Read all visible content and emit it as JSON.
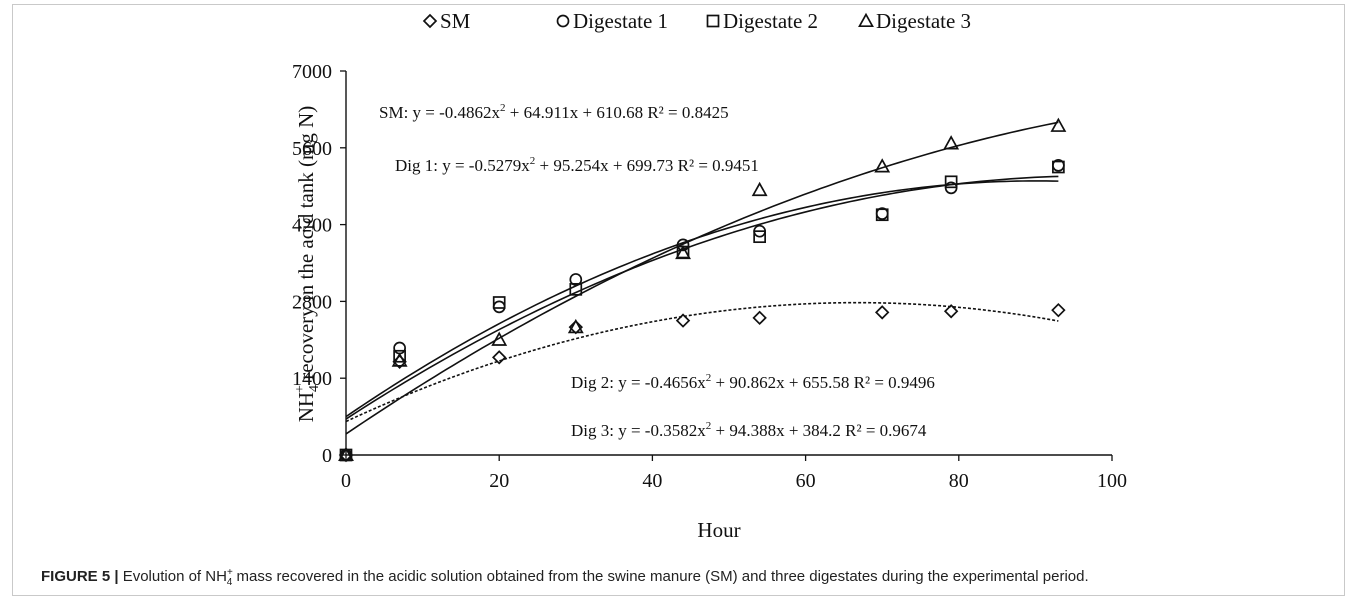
{
  "chart_data": {
    "type": "scatter",
    "xlabel": "Hour",
    "ylabel_prefix": "NH",
    "ylabel_sub": "4",
    "ylabel_sup": "+",
    "ylabel_suffix": " recovery in the acid tank (mg N)",
    "xlim": [
      0,
      100
    ],
    "ylim": [
      0,
      7000
    ],
    "xticks": [
      0,
      20,
      40,
      60,
      80,
      100
    ],
    "yticks": [
      0,
      1400,
      2800,
      4200,
      5600,
      7000
    ],
    "grid": false,
    "legend_position": "top",
    "series": [
      {
        "name": "SM",
        "marker": "diamond",
        "x": [
          0,
          7,
          20,
          30,
          44,
          54,
          70,
          79,
          93
        ],
        "y": [
          0,
          1700,
          1780,
          2330,
          2450,
          2500,
          2600,
          2620,
          2640
        ],
        "fit": {
          "a": -0.4862,
          "b": 64.911,
          "c": 610.68,
          "style": "dashed"
        }
      },
      {
        "name": "Digestate 1",
        "marker": "circle",
        "x": [
          0,
          7,
          20,
          30,
          44,
          54,
          70,
          79,
          93
        ],
        "y": [
          0,
          1950,
          2700,
          3200,
          3830,
          4080,
          4400,
          4870,
          5280
        ],
        "fit": {
          "a": -0.5279,
          "b": 95.254,
          "c": 699.73,
          "style": "solid"
        }
      },
      {
        "name": "Digestate 2",
        "marker": "square",
        "x": [
          0,
          7,
          20,
          30,
          44,
          54,
          70,
          79,
          93
        ],
        "y": [
          0,
          1800,
          2780,
          3020,
          3700,
          3980,
          4380,
          4980,
          5250
        ],
        "fit": {
          "a": -0.4656,
          "b": 90.862,
          "c": 655.58,
          "style": "solid"
        }
      },
      {
        "name": "Digestate 3",
        "marker": "triangle",
        "x": [
          0,
          7,
          20,
          30,
          44,
          54,
          70,
          79,
          93
        ],
        "y": [
          0,
          1720,
          2100,
          2330,
          3680,
          4830,
          5260,
          5680,
          6000
        ],
        "fit": {
          "a": -0.3582,
          "b": 94.388,
          "c": 384.2,
          "style": "solid"
        }
      }
    ],
    "annotations": [
      {
        "prefix": "SM: y = -0.4862x",
        "sup": "2",
        "suffix": " + 64.911x + 610.68   R² = 0.8425"
      },
      {
        "prefix": "Dig 1: y = -0.5279x",
        "sup": "2",
        "suffix": " + 95.254x + 699.73  R² = 0.9451"
      },
      {
        "prefix": "Dig 2: y = -0.4656x",
        "sup": "2",
        "suffix": " + 90.862x + 655.58   R² = 0.9496"
      },
      {
        "prefix": "Dig 3: y = -0.3582x",
        "sup": "2",
        "suffix": " + 94.388x + 384.2   R² = 0.9674"
      }
    ]
  },
  "caption": {
    "label": "FIGURE 5 |",
    "text_before": " Evolution of NH",
    "text_sub": "4",
    "text_sup": "+",
    "text_after": " mass recovered in the acidic solution obtained from the swine manure (SM) and three digestates during the experimental period."
  }
}
